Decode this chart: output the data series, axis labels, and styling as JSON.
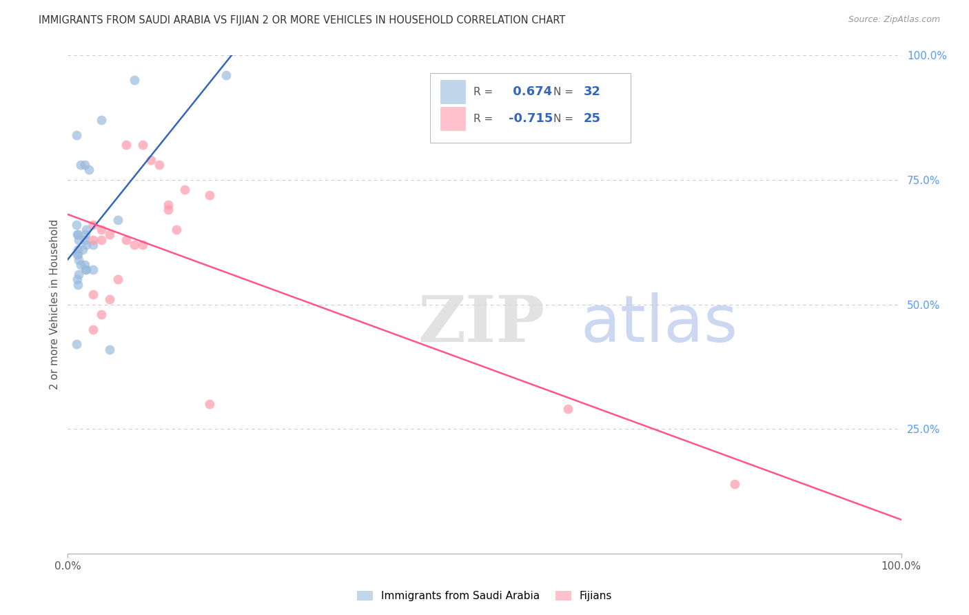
{
  "title": "IMMIGRANTS FROM SAUDI ARABIA VS FIJIAN 2 OR MORE VEHICLES IN HOUSEHOLD CORRELATION CHART",
  "source": "Source: ZipAtlas.com",
  "ylabel": "2 or more Vehicles in Household",
  "xlim": [
    0.0,
    1.0
  ],
  "ylim": [
    0.0,
    1.0
  ],
  "saudi_R": 0.674,
  "saudi_N": 32,
  "fijian_R": -0.715,
  "fijian_N": 25,
  "saudi_color": "#99BBDD",
  "fijian_color": "#FF99AA",
  "saudi_line_color": "#3366BB",
  "fijian_line_color": "#FF5588",
  "saudi_scatter_x": [
    0.04,
    0.08,
    0.01,
    0.015,
    0.02,
    0.025,
    0.01,
    0.012,
    0.011,
    0.013,
    0.02,
    0.022,
    0.03,
    0.018,
    0.012,
    0.011,
    0.013,
    0.015,
    0.02,
    0.021,
    0.03,
    0.022,
    0.013,
    0.011,
    0.012,
    0.01,
    0.05,
    0.19,
    0.06,
    0.022,
    0.021,
    0.012
  ],
  "saudi_scatter_y": [
    0.87,
    0.95,
    0.84,
    0.78,
    0.78,
    0.77,
    0.66,
    0.64,
    0.64,
    0.63,
    0.63,
    0.62,
    0.62,
    0.61,
    0.61,
    0.6,
    0.59,
    0.58,
    0.58,
    0.57,
    0.57,
    0.57,
    0.56,
    0.55,
    0.54,
    0.42,
    0.41,
    0.96,
    0.67,
    0.65,
    0.64,
    0.6
  ],
  "fijian_scatter_x": [
    0.07,
    0.09,
    0.1,
    0.11,
    0.14,
    0.12,
    0.12,
    0.03,
    0.04,
    0.05,
    0.07,
    0.08,
    0.09,
    0.03,
    0.17,
    0.13,
    0.06,
    0.05,
    0.04,
    0.17,
    0.6,
    0.8,
    0.03,
    0.03,
    0.04
  ],
  "fijian_scatter_y": [
    0.82,
    0.82,
    0.79,
    0.78,
    0.73,
    0.7,
    0.69,
    0.66,
    0.65,
    0.64,
    0.63,
    0.62,
    0.62,
    0.52,
    0.72,
    0.65,
    0.55,
    0.51,
    0.48,
    0.3,
    0.29,
    0.14,
    0.45,
    0.63,
    0.63
  ],
  "watermark_zip": "ZIP",
  "watermark_atlas": "atlas",
  "legend_label_saudi": "Immigrants from Saudi Arabia",
  "legend_label_fijian": "Fijians",
  "background_color": "#FFFFFF",
  "grid_color": "#CCCCCC",
  "right_axis_color": "#5599FF",
  "title_color": "#333333",
  "source_color": "#999999",
  "label_color": "#555555"
}
